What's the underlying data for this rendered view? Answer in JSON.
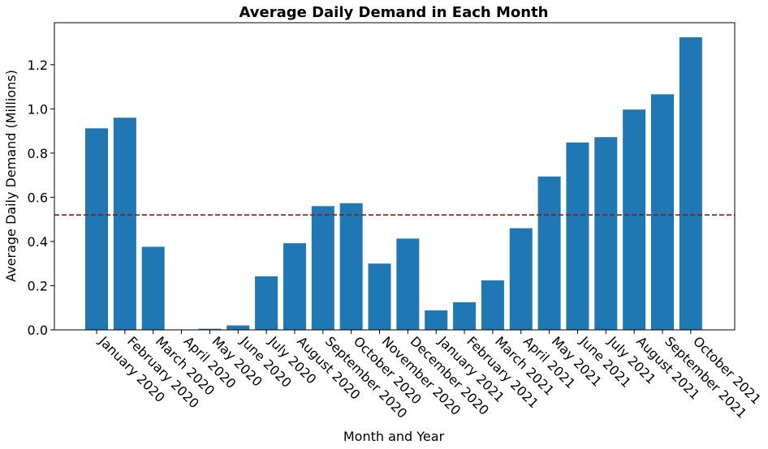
{
  "chart_data": {
    "type": "bar",
    "title": "Average Daily Demand in Each Month",
    "xlabel": "Month and Year",
    "ylabel": "Average Daily Demand (Millions)",
    "categories": [
      "January 2020",
      "February 2020",
      "March 2020",
      "April 2020",
      "May 2020",
      "June 2020",
      "July 2020",
      "August 2020",
      "September 2020",
      "October 2020",
      "November 2020",
      "December 2020",
      "January 2021",
      "February 2021",
      "March 2021",
      "April 2021",
      "May 2021",
      "June 2021",
      "July 2021",
      "August 2021",
      "September 2021",
      "October 2021"
    ],
    "values": [
      0.912,
      0.96,
      0.376,
      0.002,
      0.005,
      0.02,
      0.242,
      0.392,
      0.56,
      0.573,
      0.3,
      0.413,
      0.088,
      0.125,
      0.224,
      0.46,
      0.694,
      0.848,
      0.872,
      0.997,
      1.066,
      1.324
    ],
    "ylim": [
      0,
      1.39
    ],
    "yticks": [
      "0.0",
      "0.2",
      "0.4",
      "0.6",
      "0.8",
      "1.0",
      "1.2"
    ],
    "reference_line": {
      "value": 0.52,
      "style": "dashed",
      "color": "#8b1a1a"
    },
    "bar_color": "#1f77b4",
    "grid": false,
    "legend": "none"
  }
}
